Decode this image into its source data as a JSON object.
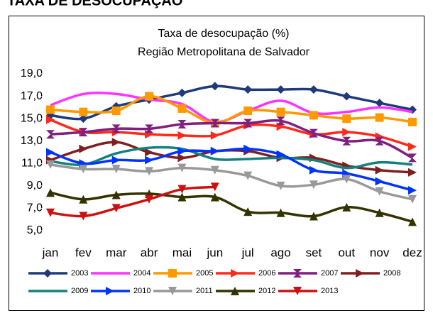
{
  "heading": "TAXA DE DESOCUPAÇÃO",
  "chart_data": {
    "type": "line",
    "title": "Taxa de desocupação (%)",
    "subtitle": "Região Metropolitana de Salvador",
    "categories": [
      "jan",
      "fev",
      "mar",
      "abr",
      "mai",
      "jun",
      "jul",
      "ago",
      "set",
      "out",
      "nov",
      "dez"
    ],
    "ylim": [
      5,
      19
    ],
    "yticks": [
      {
        "value": 5,
        "label": "5,0"
      },
      {
        "value": 7,
        "label": "7,0"
      },
      {
        "value": 9,
        "label": "9,0"
      },
      {
        "value": 11,
        "label": "11,0"
      },
      {
        "value": 13,
        "label": "13,0"
      },
      {
        "value": 15,
        "label": "15,0"
      },
      {
        "value": 17,
        "label": "17,0"
      },
      {
        "value": 19,
        "label": "19,0"
      }
    ],
    "grid": false,
    "legend": "bottom",
    "series": [
      {
        "name": "2003",
        "color": "#1f3a7a",
        "marker": "diamond",
        "values": [
          15.3,
          15.0,
          16.1,
          16.7,
          17.3,
          17.9,
          17.6,
          17.6,
          17.6,
          17.0,
          16.4,
          15.8
        ]
      },
      {
        "name": "2004",
        "color": "#ff33ff",
        "marker": "none",
        "values": [
          16.2,
          17.2,
          17.2,
          16.7,
          16.3,
          14.7,
          15.7,
          16.6,
          15.5,
          15.6,
          16.0,
          15.6
        ]
      },
      {
        "name": "2005",
        "color": "#ff9900",
        "marker": "square",
        "values": [
          15.8,
          15.6,
          15.7,
          17.0,
          15.9,
          14.6,
          15.7,
          15.6,
          15.3,
          15.0,
          15.1,
          14.7
        ]
      },
      {
        "name": "2006",
        "color": "#ff2a1a",
        "marker": "triangle-right",
        "values": [
          14.9,
          13.8,
          13.8,
          13.6,
          13.5,
          13.5,
          14.4,
          14.3,
          13.6,
          13.8,
          13.4,
          12.5
        ]
      },
      {
        "name": "2007",
        "color": "#7f1f7f",
        "marker": "hourglass",
        "values": [
          13.6,
          13.8,
          14.1,
          14.1,
          14.5,
          14.6,
          14.6,
          14.8,
          13.7,
          13.0,
          13.0,
          11.5
        ]
      },
      {
        "name": "2008",
        "color": "#7f1f1f",
        "marker": "triangle-right",
        "values": [
          11.3,
          12.3,
          12.9,
          12.0,
          11.5,
          12.1,
          12.1,
          11.5,
          11.5,
          10.8,
          10.4,
          10.2
        ]
      },
      {
        "name": "2009",
        "color": "#138080",
        "marker": "none",
        "values": [
          11.2,
          10.9,
          11.9,
          12.4,
          12.3,
          11.4,
          11.4,
          11.5,
          11.3,
          10.6,
          11.1,
          10.9
        ]
      },
      {
        "name": "2010",
        "color": "#0033ff",
        "marker": "triangle-right",
        "values": [
          12.0,
          11.0,
          11.3,
          11.3,
          12.1,
          12.1,
          12.3,
          11.8,
          10.4,
          10.1,
          9.4,
          8.6
        ]
      },
      {
        "name": "2011",
        "color": "#999999",
        "marker": "triangle-down",
        "values": [
          10.9,
          10.5,
          10.5,
          10.3,
          10.6,
          10.4,
          9.9,
          9.0,
          9.1,
          9.6,
          8.5,
          7.8
        ]
      },
      {
        "name": "2012",
        "color": "#333300",
        "marker": "triangle-up",
        "values": [
          8.4,
          7.8,
          8.2,
          8.3,
          8.0,
          8.0,
          6.7,
          6.6,
          6.3,
          7.1,
          6.6,
          5.8
        ]
      },
      {
        "name": "2013",
        "color": "#cc1111",
        "marker": "triangle-down",
        "values": [
          6.6,
          6.3,
          7.0,
          7.8,
          8.7,
          8.9,
          null,
          null,
          null,
          null,
          null,
          null
        ]
      }
    ]
  }
}
